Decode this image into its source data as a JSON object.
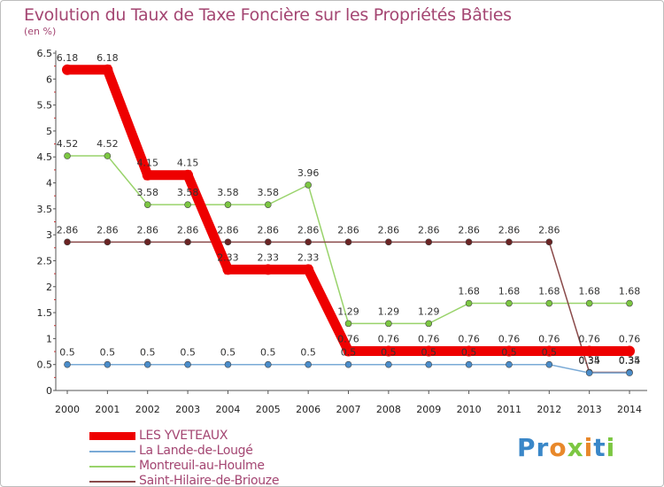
{
  "title": "Evolution du Taux de Taxe Foncière sur les Propriétés Bâties",
  "unit": "(en %)",
  "brand": "Proxiti",
  "chart_data": {
    "type": "line",
    "title": "Evolution du Taux de Taxe Foncière sur les Propriétés Bâties",
    "ylabel": "(en %)",
    "xlabel": "",
    "ylim": [
      0,
      6.5
    ],
    "yticks": [
      "0",
      "0.5",
      "1",
      "1.5",
      "2",
      "2.5",
      "3",
      "3.5",
      "4",
      "4.5",
      "5",
      "5.5",
      "6",
      "6.5"
    ],
    "categories": [
      "2000",
      "2001",
      "2002",
      "2003",
      "2004",
      "2005",
      "2006",
      "2007",
      "2008",
      "2009",
      "2010",
      "2011",
      "2012",
      "2013",
      "2014"
    ],
    "series": [
      {
        "name": "Montreuil-au-Houlme",
        "color": "#99d36b",
        "marker": "#7cc742",
        "values": [
          4.52,
          4.52,
          3.58,
          3.58,
          3.58,
          3.58,
          3.96,
          1.29,
          1.29,
          1.29,
          1.68,
          1.68,
          1.68,
          1.68,
          1.68
        ],
        "labels": [
          "4.52",
          "4.52",
          "3.58",
          "3.58",
          "3.58",
          "3.58",
          "3.96",
          "1.29",
          "1.29",
          "1.29",
          "1.68",
          "1.68",
          "1.68",
          "1.68",
          "1.68"
        ]
      },
      {
        "name": "Saint-Hilaire-de-Briouze",
        "color": "#8a4a4a",
        "marker": "#6b2424",
        "values": [
          2.86,
          2.86,
          2.86,
          2.86,
          2.86,
          2.86,
          2.86,
          2.86,
          2.86,
          2.86,
          2.86,
          2.86,
          2.86,
          0.35,
          0.35
        ],
        "labels": [
          "2.86",
          "2.86",
          "2.86",
          "2.86",
          "2.86",
          "2.86",
          "2.86",
          "2.86",
          "2.86",
          "2.86",
          "2.86",
          "2.86",
          "2.86",
          "0.35",
          "0.35"
        ]
      },
      {
        "name": "La Lande-de-Lougé",
        "color": "#7aaad6",
        "marker": "#4a8cc9",
        "values": [
          0.5,
          0.5,
          0.5,
          0.5,
          0.5,
          0.5,
          0.5,
          0.5,
          0.5,
          0.5,
          0.5,
          0.5,
          0.5,
          0.34,
          0.34
        ],
        "labels": [
          "0.5",
          "0.5",
          "0.5",
          "0.5",
          "0.5",
          "0.5",
          "0.5",
          "0.5",
          "0.5",
          "0.5",
          "0.5",
          "0.5",
          "0.5",
          "0.34",
          "0.34"
        ]
      },
      {
        "name": "LES YVETEAUX",
        "color": "#ee0000",
        "marker": "#ee0000",
        "bold": true,
        "values": [
          6.18,
          6.18,
          4.15,
          4.15,
          2.33,
          2.33,
          2.33,
          0.76,
          0.76,
          0.76,
          0.76,
          0.76,
          0.76,
          0.76,
          0.76
        ],
        "labels": [
          "6.18",
          "6.18",
          "4.15",
          "4.15",
          "2.33",
          "2.33",
          "2.33",
          "0.76",
          "0.76",
          "0.76",
          "0.76",
          "0.76",
          "0.76",
          "0.76",
          "0.76"
        ]
      }
    ],
    "legend": [
      {
        "name": "LES YVETEAUX",
        "color": "#ee0000",
        "bold": true
      },
      {
        "name": "La Lande-de-Lougé",
        "color": "#7aaad6",
        "bold": false
      },
      {
        "name": "Montreuil-au-Houlme",
        "color": "#99d36b",
        "bold": false
      },
      {
        "name": "Saint-Hilaire-de-Briouze",
        "color": "#8a4a4a",
        "bold": false
      }
    ]
  }
}
